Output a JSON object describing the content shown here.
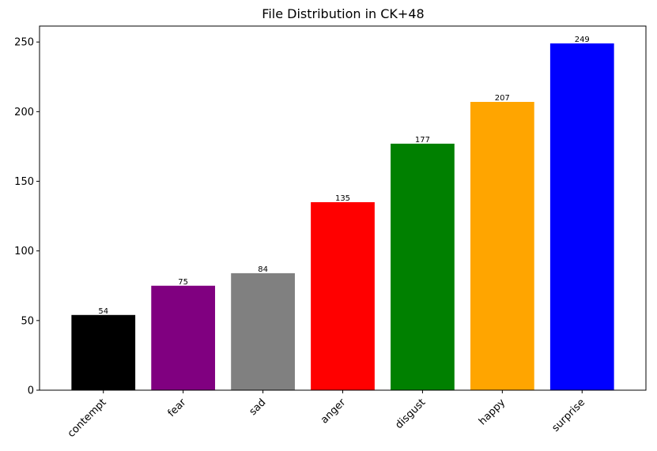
{
  "chart_data": {
    "type": "bar",
    "title": "File Distribution in CK+48",
    "xlabel": "",
    "ylabel": "",
    "categories": [
      "contempt",
      "fear",
      "sad",
      "anger",
      "disgust",
      "happy",
      "surprise"
    ],
    "values": [
      54,
      75,
      84,
      135,
      177,
      207,
      249
    ],
    "colors": [
      "#000000",
      "#800080",
      "#808080",
      "#ff0000",
      "#008000",
      "#ffa500",
      "#0000ff"
    ],
    "ylim": [
      0,
      261.45
    ],
    "yticks": [
      0,
      50,
      100,
      150,
      200,
      250
    ],
    "grid": false,
    "legend": "none",
    "data_labels": true
  }
}
